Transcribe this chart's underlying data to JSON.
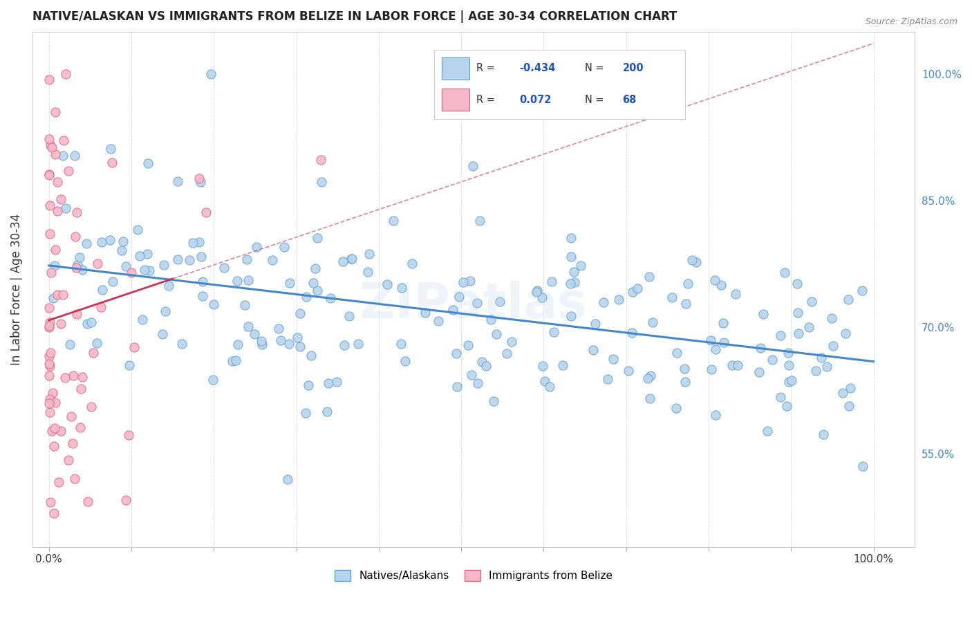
{
  "title": "NATIVE/ALASKAN VS IMMIGRANTS FROM BELIZE IN LABOR FORCE | AGE 30-34 CORRELATION CHART",
  "source": "Source: ZipAtlas.com",
  "ylabel": "In Labor Force | Age 30-34",
  "x_tick_labels": [
    "0.0%",
    "",
    "",
    "",
    "",
    "",
    "",
    "",
    "",
    "",
    "100.0%"
  ],
  "x_ticks": [
    0.0,
    0.1,
    0.2,
    0.3,
    0.4,
    0.5,
    0.6,
    0.7,
    0.8,
    0.9,
    1.0
  ],
  "y_tick_labels_right": [
    "100.0%",
    "85.0%",
    "70.0%",
    "55.0%"
  ],
  "y_tick_positions_right": [
    1.0,
    0.85,
    0.7,
    0.55
  ],
  "xlim": [
    -0.02,
    1.05
  ],
  "ylim": [
    0.44,
    1.05
  ],
  "blue_color": "#b8d4ed",
  "blue_edge_color": "#5a9fd4",
  "blue_line_color": "#4488cc",
  "pink_color": "#f5b8c8",
  "pink_edge_color": "#e06080",
  "pink_line_color": "#cc3355",
  "watermark": "ZIPatlas",
  "legend_R1": "-0.434",
  "legend_N1": "200",
  "legend_R2": "0.072",
  "legend_N2": "68",
  "blue_N": 200,
  "pink_N": 68,
  "blue_R": -0.434,
  "pink_R": 0.072,
  "blue_seed": 42,
  "pink_seed": 99,
  "title_fontsize": 12,
  "tick_fontsize": 11
}
